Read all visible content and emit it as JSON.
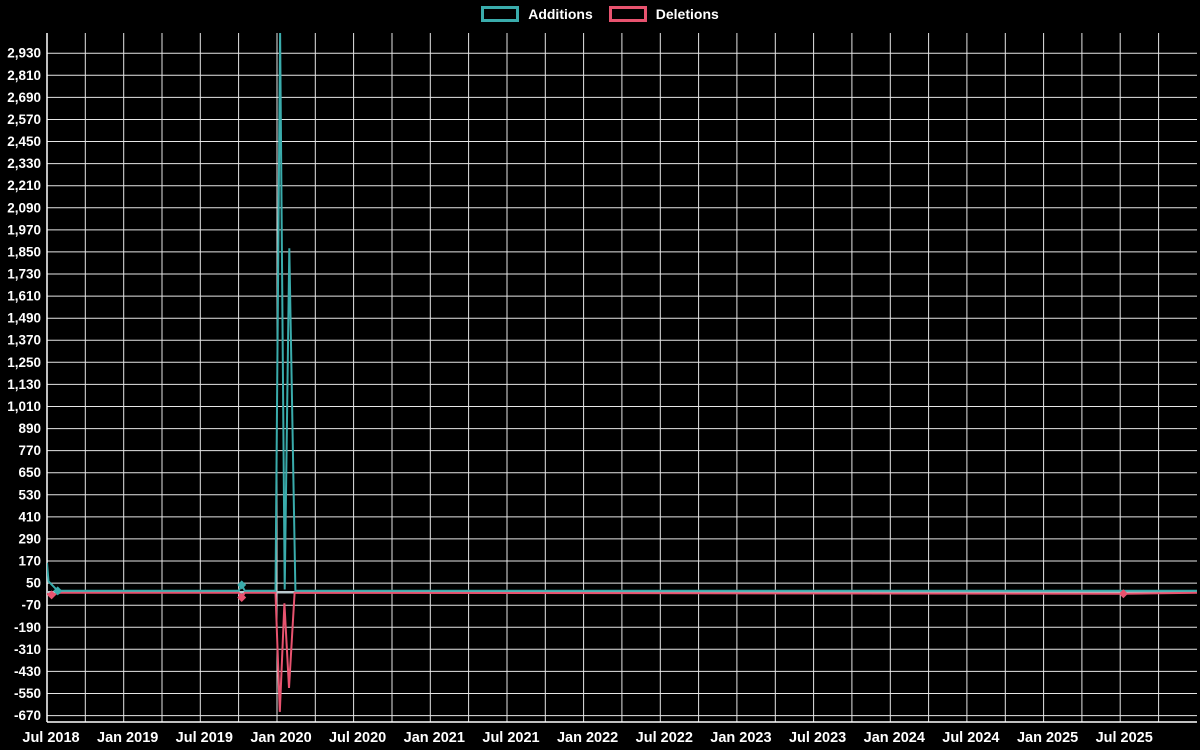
{
  "legend": {
    "items": [
      {
        "label": "Additions",
        "color": "#3AACAC"
      },
      {
        "label": "Deletions",
        "color": "#E8536F"
      }
    ]
  },
  "chart_data": {
    "type": "line",
    "title": "",
    "background": "#000000",
    "grid": true,
    "legend_position": "top-center",
    "grid_color": "#e6e6e6",
    "axis_color": "#ffffff",
    "text_color": "#ffffff",
    "zero_line_color": "#b9c8cd",
    "x_axis": {
      "tick_labels": [
        "Jul 2018",
        "Jan 2019",
        "Jul 2019",
        "Jan 2020",
        "Jul 2020",
        "Jan 2021",
        "Jul 2021",
        "Jan 2022",
        "Jul 2022",
        "Jan 2023",
        "Jul 2023",
        "Jan 2024",
        "Jul 2024",
        "Jan 2025",
        "Jul 2025"
      ],
      "start_year": 2018.54,
      "end_year": 2026.04
    },
    "y_axis": {
      "min": -670,
      "max": 2930,
      "step": 120,
      "tick_labels": [
        "-670",
        "-550",
        "-430",
        "-310",
        "-190",
        "-70",
        "50",
        "170",
        "290",
        "410",
        "530",
        "650",
        "770",
        "890",
        "1,010",
        "1,130",
        "1,250",
        "1,370",
        "1,490",
        "1,610",
        "1,730",
        "1,850",
        "1,970",
        "2,090",
        "2,210",
        "2,330",
        "2,450",
        "2,570",
        "2,690",
        "2,810",
        "2,930"
      ],
      "visible_top_clip_value": 3040,
      "visible_bottom_clip_value": -705
    },
    "series": [
      {
        "name": "Additions",
        "color": "#3AACAC",
        "marker": "diamond",
        "points": [
          [
            2018.54,
            160,
            0
          ],
          [
            2018.55,
            60,
            0
          ],
          [
            2018.61,
            8,
            1
          ],
          [
            2019.79,
            8,
            0
          ],
          [
            2019.81,
            40,
            1
          ],
          [
            2019.83,
            8,
            0
          ],
          [
            2020.03,
            8,
            0
          ],
          [
            2020.06,
            3050,
            0
          ],
          [
            2020.09,
            15,
            0
          ],
          [
            2020.12,
            1870,
            0
          ],
          [
            2020.16,
            8,
            0
          ],
          [
            2026.04,
            8,
            0
          ]
        ]
      },
      {
        "name": "Deletions",
        "color": "#E8536F",
        "marker": "diamond",
        "points": [
          [
            2018.54,
            -8,
            0
          ],
          [
            2018.57,
            -14,
            1
          ],
          [
            2018.63,
            -2,
            0
          ],
          [
            2019.79,
            -2,
            0
          ],
          [
            2019.81,
            -28,
            1
          ],
          [
            2019.83,
            -2,
            0
          ],
          [
            2020.03,
            -2,
            0
          ],
          [
            2020.058,
            -650,
            0
          ],
          [
            2020.088,
            -60,
            0
          ],
          [
            2020.118,
            -520,
            0
          ],
          [
            2020.155,
            -2,
            0
          ],
          [
            2025.56,
            -8,
            1
          ],
          [
            2026.04,
            -2,
            0
          ]
        ]
      }
    ]
  }
}
